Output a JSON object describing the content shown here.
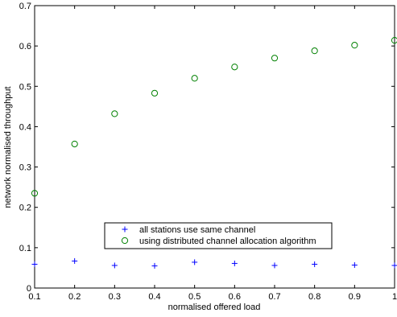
{
  "chart_data": {
    "type": "scatter",
    "xlabel": "normalised offered load",
    "ylabel": "network normalised throughput",
    "xlim": [
      0.1,
      1.0
    ],
    "ylim": [
      0,
      0.7
    ],
    "x_ticks": [
      "0.1",
      "0.2",
      "0.3",
      "0.4",
      "0.5",
      "0.6",
      "0.7",
      "0.8",
      "0.9",
      "1"
    ],
    "y_ticks": [
      "0",
      "0.1",
      "0.2",
      "0.3",
      "0.4",
      "0.5",
      "0.6",
      "0.7"
    ],
    "x": [
      0.1,
      0.2,
      0.3,
      0.4,
      0.5,
      0.6,
      0.7,
      0.8,
      0.9,
      1.0
    ],
    "grid": false,
    "legend_position": "lower-center",
    "series": [
      {
        "name": "all stations use same channel",
        "marker": "plus",
        "color": "#0000ff",
        "values": [
          0.059,
          0.067,
          0.056,
          0.055,
          0.064,
          0.061,
          0.056,
          0.059,
          0.057,
          0.056
        ]
      },
      {
        "name": "using distributed channel allocation algorithm",
        "marker": "circle",
        "color": "#008000",
        "values": [
          0.235,
          0.357,
          0.432,
          0.483,
          0.52,
          0.548,
          0.57,
          0.588,
          0.602,
          0.614
        ]
      }
    ]
  }
}
